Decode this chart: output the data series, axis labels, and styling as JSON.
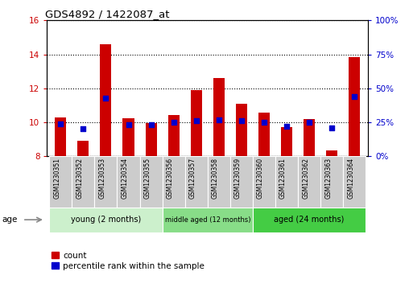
{
  "title": "GDS4892 / 1422087_at",
  "samples": [
    "GSM1230351",
    "GSM1230352",
    "GSM1230353",
    "GSM1230354",
    "GSM1230355",
    "GSM1230356",
    "GSM1230357",
    "GSM1230358",
    "GSM1230359",
    "GSM1230360",
    "GSM1230361",
    "GSM1230362",
    "GSM1230363",
    "GSM1230364"
  ],
  "count_values": [
    10.3,
    8.9,
    14.6,
    10.25,
    9.95,
    10.45,
    11.9,
    12.6,
    11.1,
    10.55,
    9.7,
    10.2,
    8.35,
    13.85
  ],
  "percentile_values": [
    24,
    20,
    43,
    23,
    23,
    25,
    26,
    27,
    26,
    25,
    22,
    25,
    21,
    44
  ],
  "ylim_left": [
    8,
    16
  ],
  "ylim_right": [
    0,
    100
  ],
  "yticks_left": [
    8,
    10,
    12,
    14,
    16
  ],
  "yticks_right": [
    0,
    25,
    50,
    75,
    100
  ],
  "bar_color": "#cc0000",
  "dot_color": "#0000cc",
  "bar_width": 0.5,
  "groups": [
    {
      "label": "young (2 months)",
      "indices": [
        0,
        1,
        2,
        3,
        4
      ],
      "color": "#ccf0cc"
    },
    {
      "label": "middle aged (12 months)",
      "indices": [
        5,
        6,
        7,
        8
      ],
      "color": "#88dd88"
    },
    {
      "label": "aged (24 months)",
      "indices": [
        9,
        10,
        11,
        12,
        13
      ],
      "color": "#44cc44"
    }
  ],
  "age_label": "age",
  "legend_count_label": "count",
  "legend_percentile_label": "percentile rank within the sample",
  "grid_color": "#000000",
  "background_color": "#ffffff",
  "tick_label_color_left": "#cc0000",
  "tick_label_color_right": "#0000cc",
  "cell_color": "#cccccc"
}
